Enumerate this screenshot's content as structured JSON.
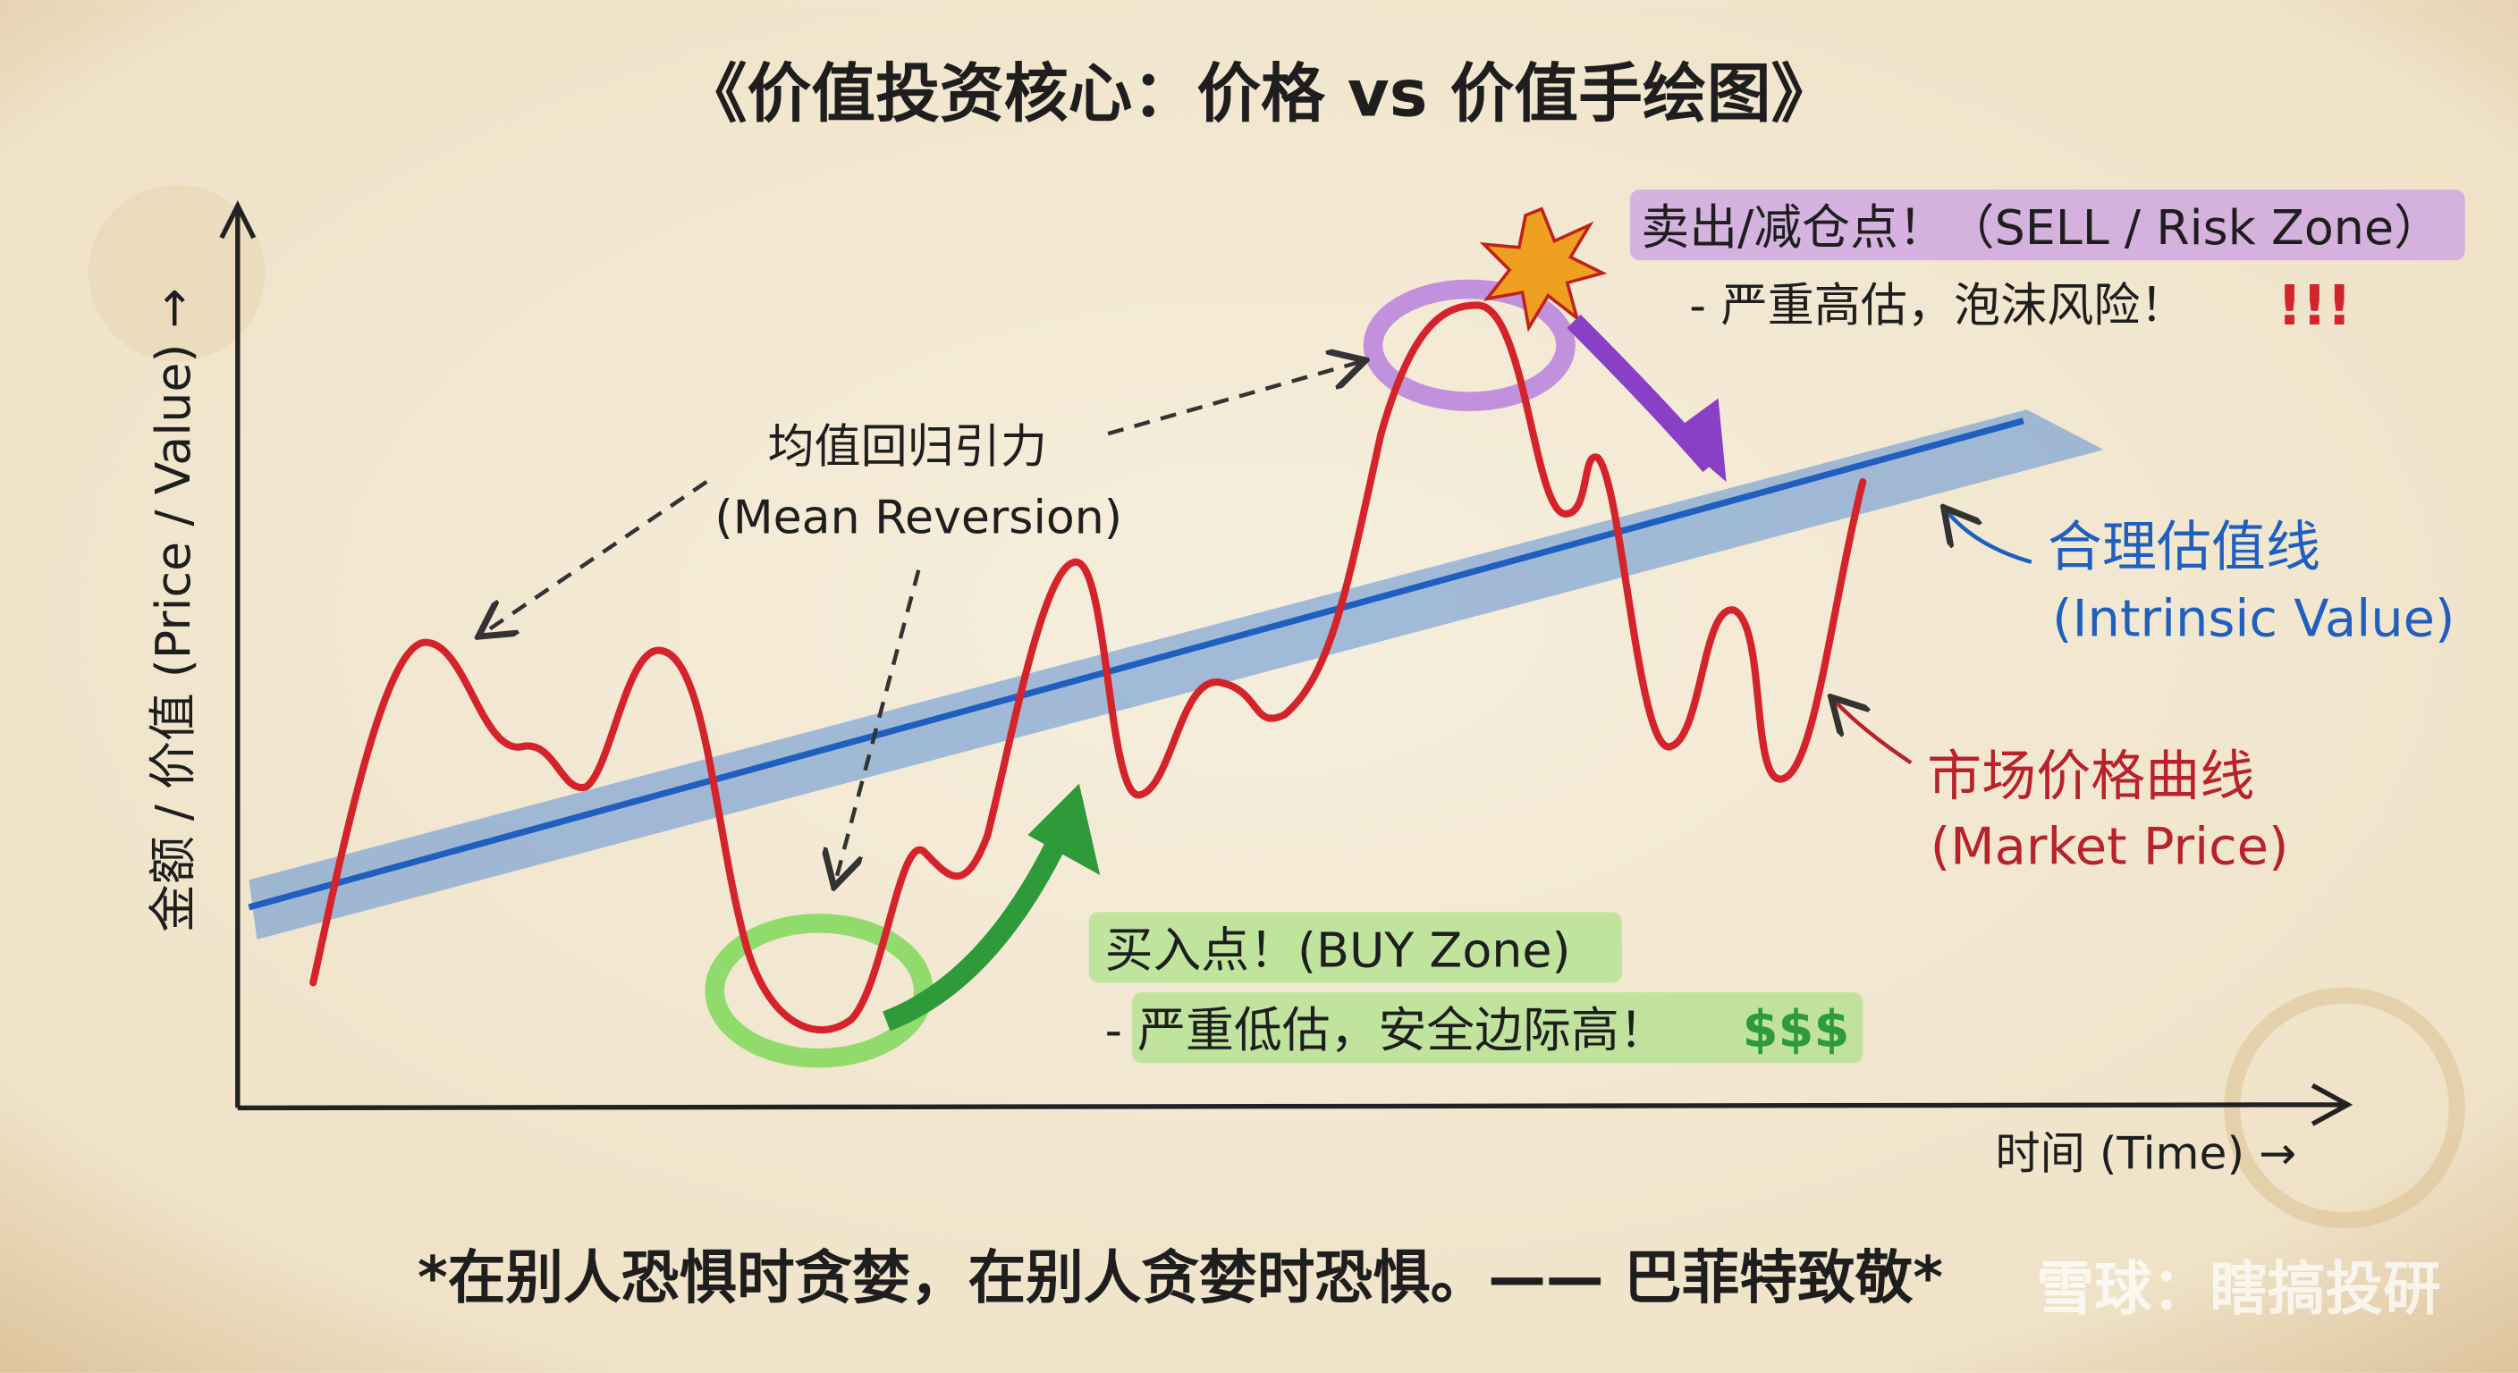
{
  "header": {
    "title": "《价值投资核心：价格 vs 价值手绘图》"
  },
  "axes": {
    "y_label": "金额 / 价值 (Price / Value) →",
    "x_label": "时间 (Time) →"
  },
  "annotations": {
    "mean_reversion": {
      "title": "均值回归引力",
      "subtitle": "(Mean Reversion)"
    },
    "sell": {
      "title": "卖出/减仓点！（SELL / Risk Zone）",
      "note": "- 严重高估，泡沫风险！",
      "mark": "!!!"
    },
    "intrinsic": {
      "title": "合理估值线",
      "subtitle": "(Intrinsic Value)"
    },
    "market": {
      "title": "市场价格曲线",
      "subtitle": "(Market Price)"
    },
    "buy": {
      "title": "买入点！(BUY Zone)",
      "note": "- 严重低估，安全边际高！",
      "mark": "$$$"
    }
  },
  "footer": {
    "quote": "*在别人恐惧时贪婪，在别人贪婪时恐惧。—— 巴菲特致敬*",
    "watermark": "雪球：瞎搞投研"
  }
}
